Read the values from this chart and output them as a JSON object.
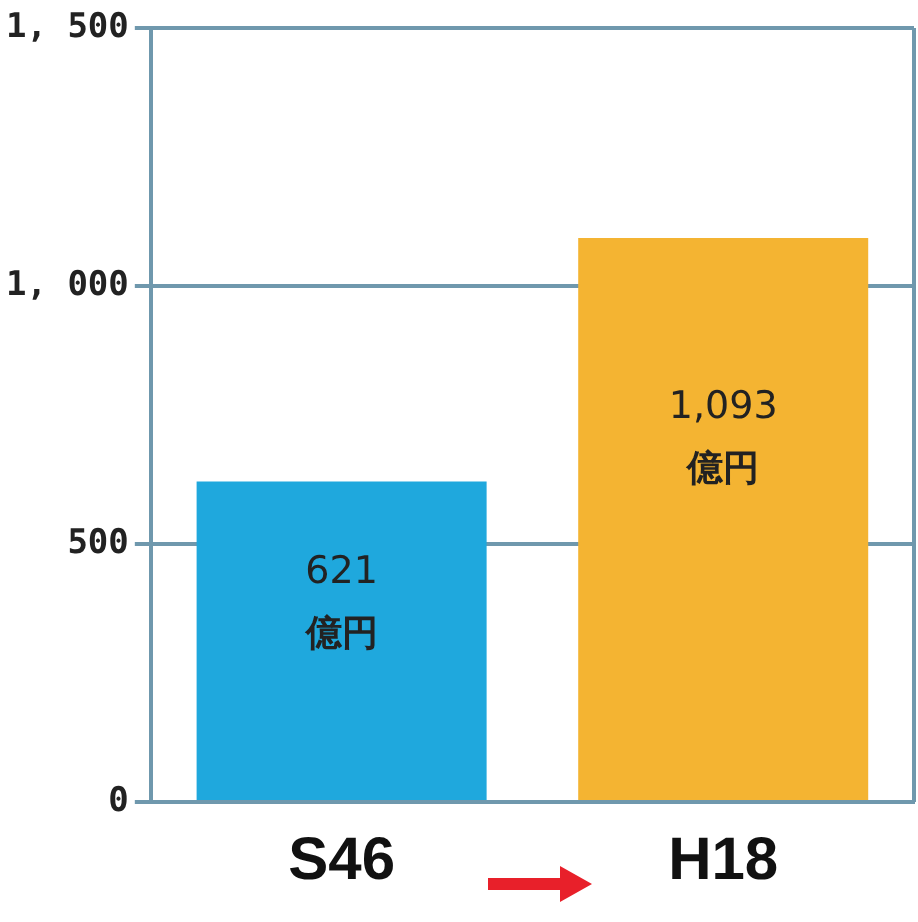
{
  "chart_data": {
    "type": "bar",
    "categories": [
      "S46",
      "H18"
    ],
    "values": [
      621,
      1093
    ],
    "colors": [
      "#1fa8dd",
      "#f4b432"
    ],
    "value_labels": [
      "621\n億円",
      "1,093\n億円"
    ],
    "ylim": [
      0,
      1500
    ],
    "yticks": [
      {
        "value": 0,
        "label": "0"
      },
      {
        "value": 500,
        "label": "500"
      },
      {
        "value": 1000,
        "label": "1, 000"
      },
      {
        "value": 1500,
        "label": "1, 500"
      }
    ],
    "grid": "y",
    "legend": false
  }
}
